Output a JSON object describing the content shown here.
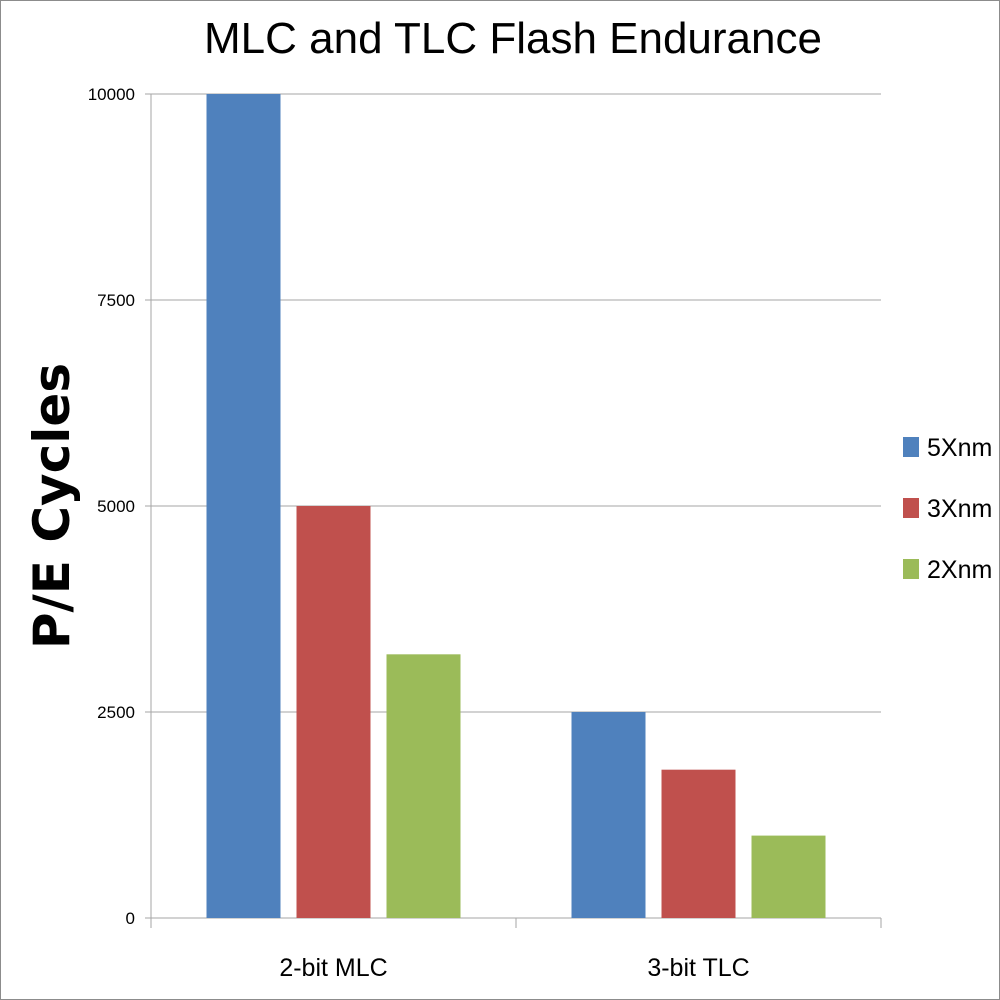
{
  "chart_data": {
    "type": "bar",
    "title": "MLC and TLC Flash Endurance",
    "xlabel": "",
    "ylabel": "P/E Cycles",
    "categories": [
      "2-bit MLC",
      "3-bit TLC"
    ],
    "series": [
      {
        "name": "5Xnm",
        "color": "#4f81bd",
        "values": [
          10000,
          2500
        ]
      },
      {
        "name": "3Xnm",
        "color": "#c0504d",
        "values": [
          5000,
          1800
        ]
      },
      {
        "name": "2Xnm",
        "color": "#9bbb59",
        "values": [
          3200,
          1000
        ]
      }
    ],
    "ylim": [
      0,
      10000
    ],
    "yticks": [
      0,
      2500,
      5000,
      7500,
      10000
    ],
    "ytick_labels": [
      "0",
      "2500",
      "5000",
      "7500",
      "10000"
    ],
    "grid": true,
    "legend_position": "right"
  }
}
